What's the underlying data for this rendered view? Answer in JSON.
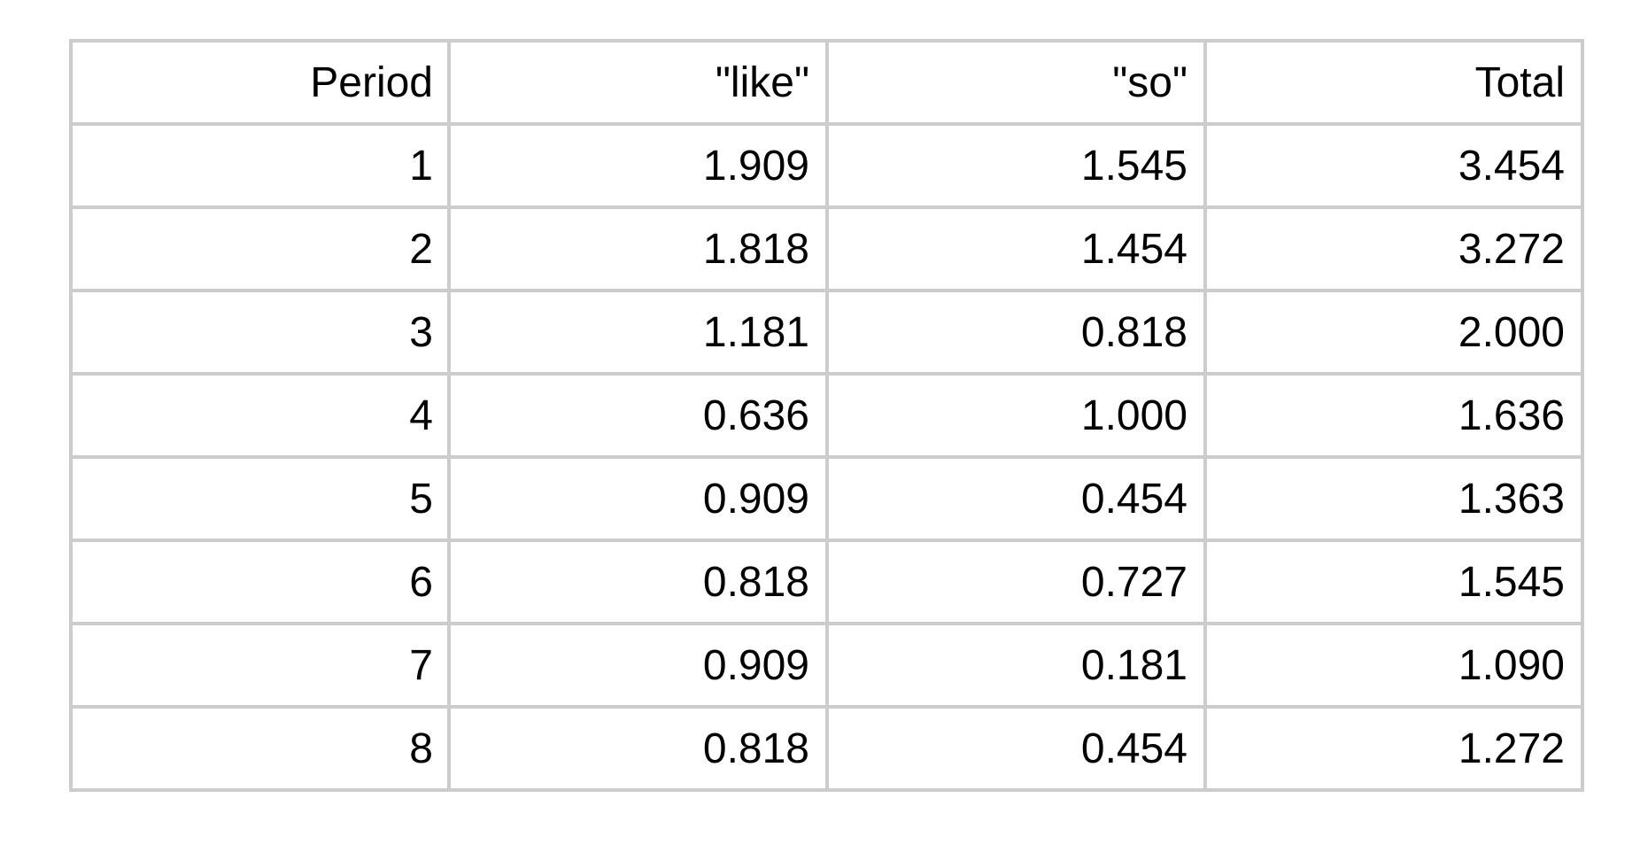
{
  "table": {
    "columns": [
      "Period",
      "\"like\"",
      "\"so\"",
      "Total"
    ],
    "rows": [
      [
        "1",
        "1.909",
        "1.545",
        "3.454"
      ],
      [
        "2",
        "1.818",
        "1.454",
        "3.272"
      ],
      [
        "3",
        "1.181",
        "0.818",
        "2.000"
      ],
      [
        "4",
        "0.636",
        "1.000",
        "1.636"
      ],
      [
        "5",
        "0.909",
        "0.454",
        "1.363"
      ],
      [
        "6",
        "0.818",
        "0.727",
        "1.545"
      ],
      [
        "7",
        "0.909",
        "0.181",
        "1.090"
      ],
      [
        "8",
        "0.818",
        "0.454",
        "1.272"
      ]
    ]
  },
  "colors": {
    "border": "#cccccc",
    "text": "#000000",
    "background": "#ffffff"
  }
}
